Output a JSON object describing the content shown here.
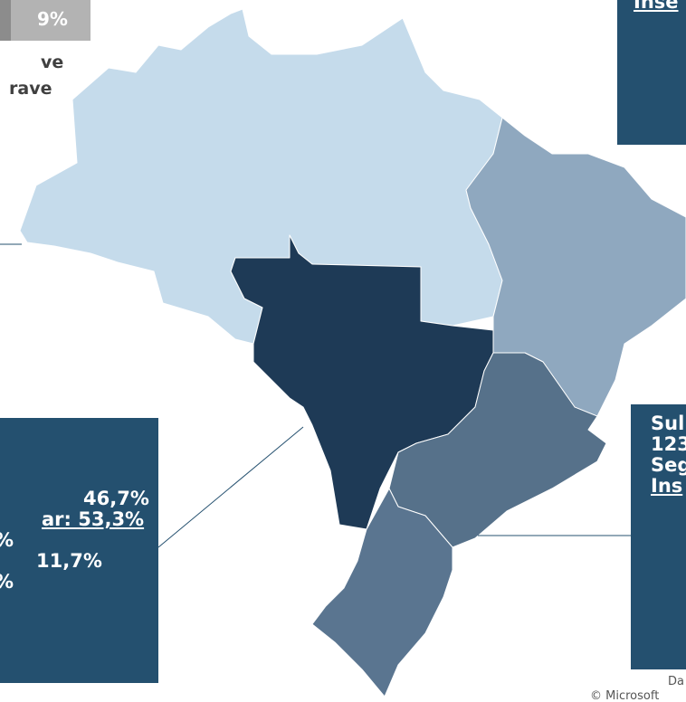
{
  "legend": {
    "value": "9%",
    "lines": [
      "ve",
      "rave"
    ]
  },
  "top_right_box": {
    "lines": [
      "Inse"
    ]
  },
  "left_box": {
    "lines": [
      "46,7%",
      "ar: 53,3%",
      "%",
      "11,7%",
      "%"
    ]
  },
  "right_box": {
    "lines": [
      "Sul",
      "123",
      "Seg",
      "Ins"
    ]
  },
  "credits": {
    "lines": [
      "Da",
      "© Microsoft"
    ]
  }
}
